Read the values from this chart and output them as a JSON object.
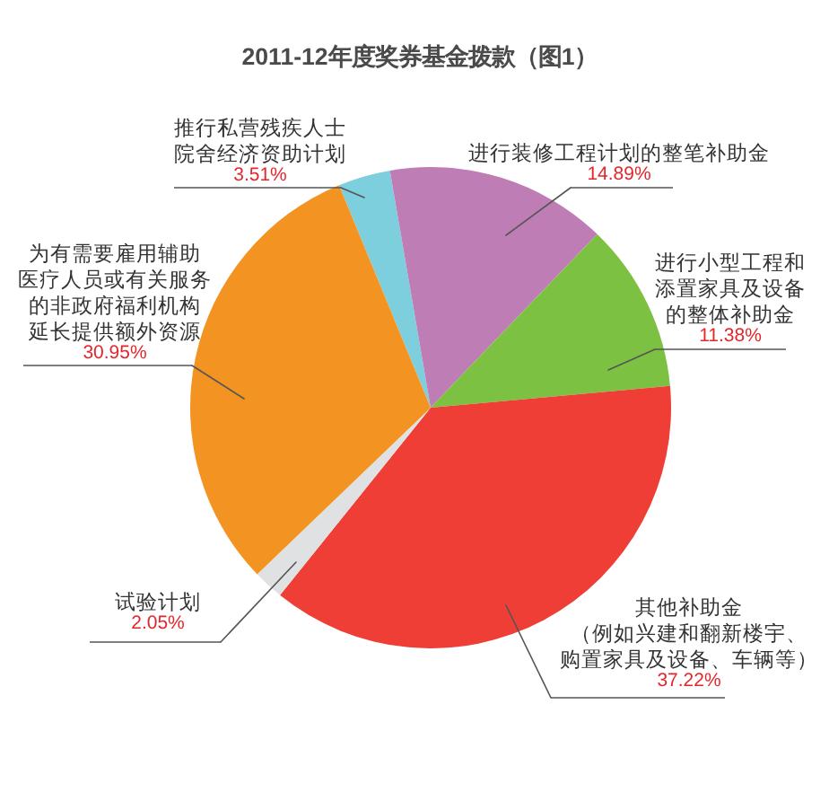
{
  "chart_data": {
    "type": "pie",
    "title": "2011-12年度奖券基金拨款（图1）",
    "categories": [
      "推行私营残疾人士院舍经济资助计划",
      "进行装修工程计划的整笔补助金",
      "进行小型工程和添置家具及设备的整体补助金",
      "其他补助金（例如兴建和翻新楼宇、购置家具及设备、车辆等）",
      "试验计划",
      "为有需要雇用辅助医疗人员或有关服务的非政府福利机构延长提供额外资源"
    ],
    "values": [
      3.51,
      14.89,
      11.38,
      37.22,
      2.05,
      30.95
    ],
    "colors": [
      "#7ecfdd",
      "#bf7db5",
      "#7dc142",
      "#ee3e36",
      "#e0e1e2",
      "#f39422"
    ],
    "value_labels": [
      "3.51%",
      "14.89%",
      "11.38%",
      "37.22%",
      "2.05%",
      "30.95%"
    ]
  }
}
